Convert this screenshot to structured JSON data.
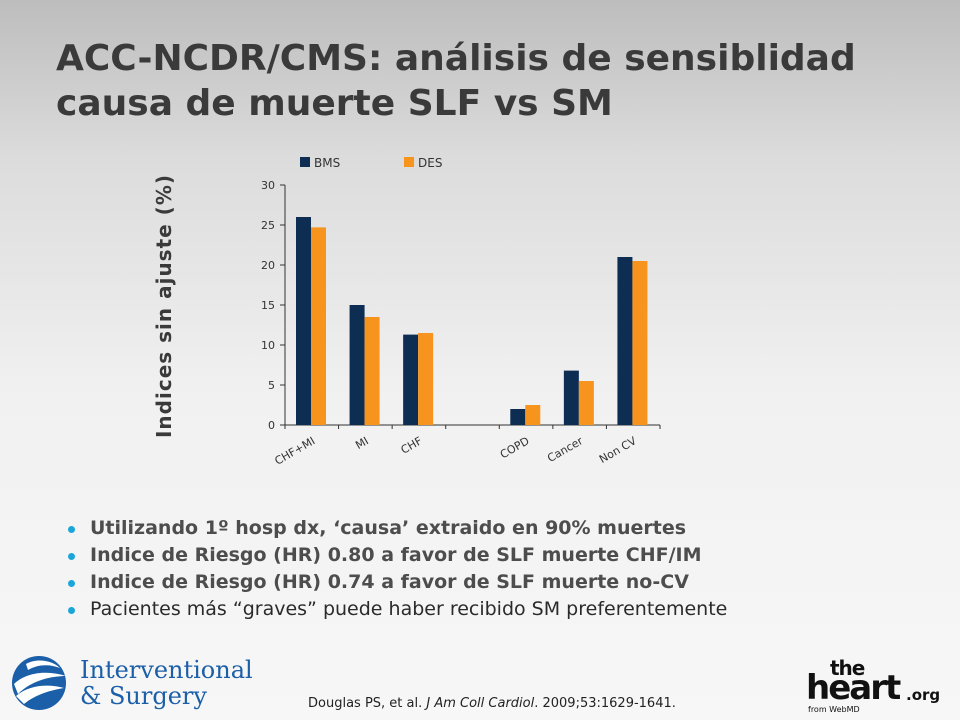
{
  "slide": {
    "title_line1": "ACC-NCDR/CMS: análisis de sensiblidad",
    "title_line2": "causa de muerte SLF vs SM"
  },
  "chart_data": {
    "type": "bar",
    "ylabel": "Indices sin ajuste  (%)",
    "ylim": [
      0,
      30
    ],
    "yticks": [
      0,
      5,
      10,
      15,
      20,
      25,
      30
    ],
    "categories": [
      "CHF+MI",
      "MI",
      "CHF",
      "",
      "COPD",
      "Cancer",
      "Non CV"
    ],
    "series": [
      {
        "name": "BMS",
        "color": "#0d2d52",
        "values": [
          26,
          15,
          11.3,
          null,
          2,
          6.8,
          21
        ]
      },
      {
        "name": "DES",
        "color": "#f7941d",
        "values": [
          24.7,
          13.5,
          11.5,
          null,
          2.5,
          5.5,
          20.5
        ]
      }
    ],
    "legend_position": "top-left",
    "grid": false
  },
  "bullets": [
    "Utilizando 1º hosp dx, ‘causa’ extraido en 90% muertes",
    "Indice de Riesgo (HR) 0.80 a favor de SLF muerte CHF/IM",
    "Indice de Riesgo (HR) 0.74 a favor de  SLF muerte no-CV",
    "Pacientes más “graves” puede haber recibido SM preferentemente"
  ],
  "citation": {
    "authors": "Douglas PS, et al.",
    "journal": "J Am Coll Cardiol",
    "details": ". 2009;53:1629-1641."
  },
  "logos": {
    "left_line1": "Interventional",
    "left_line2": "& Surgery",
    "right_the": "the",
    "right_heart": "heart",
    "right_org": ".org",
    "right_from": "from WebMD"
  },
  "icons": {
    "left_logo": "globe-swirl-icon"
  }
}
